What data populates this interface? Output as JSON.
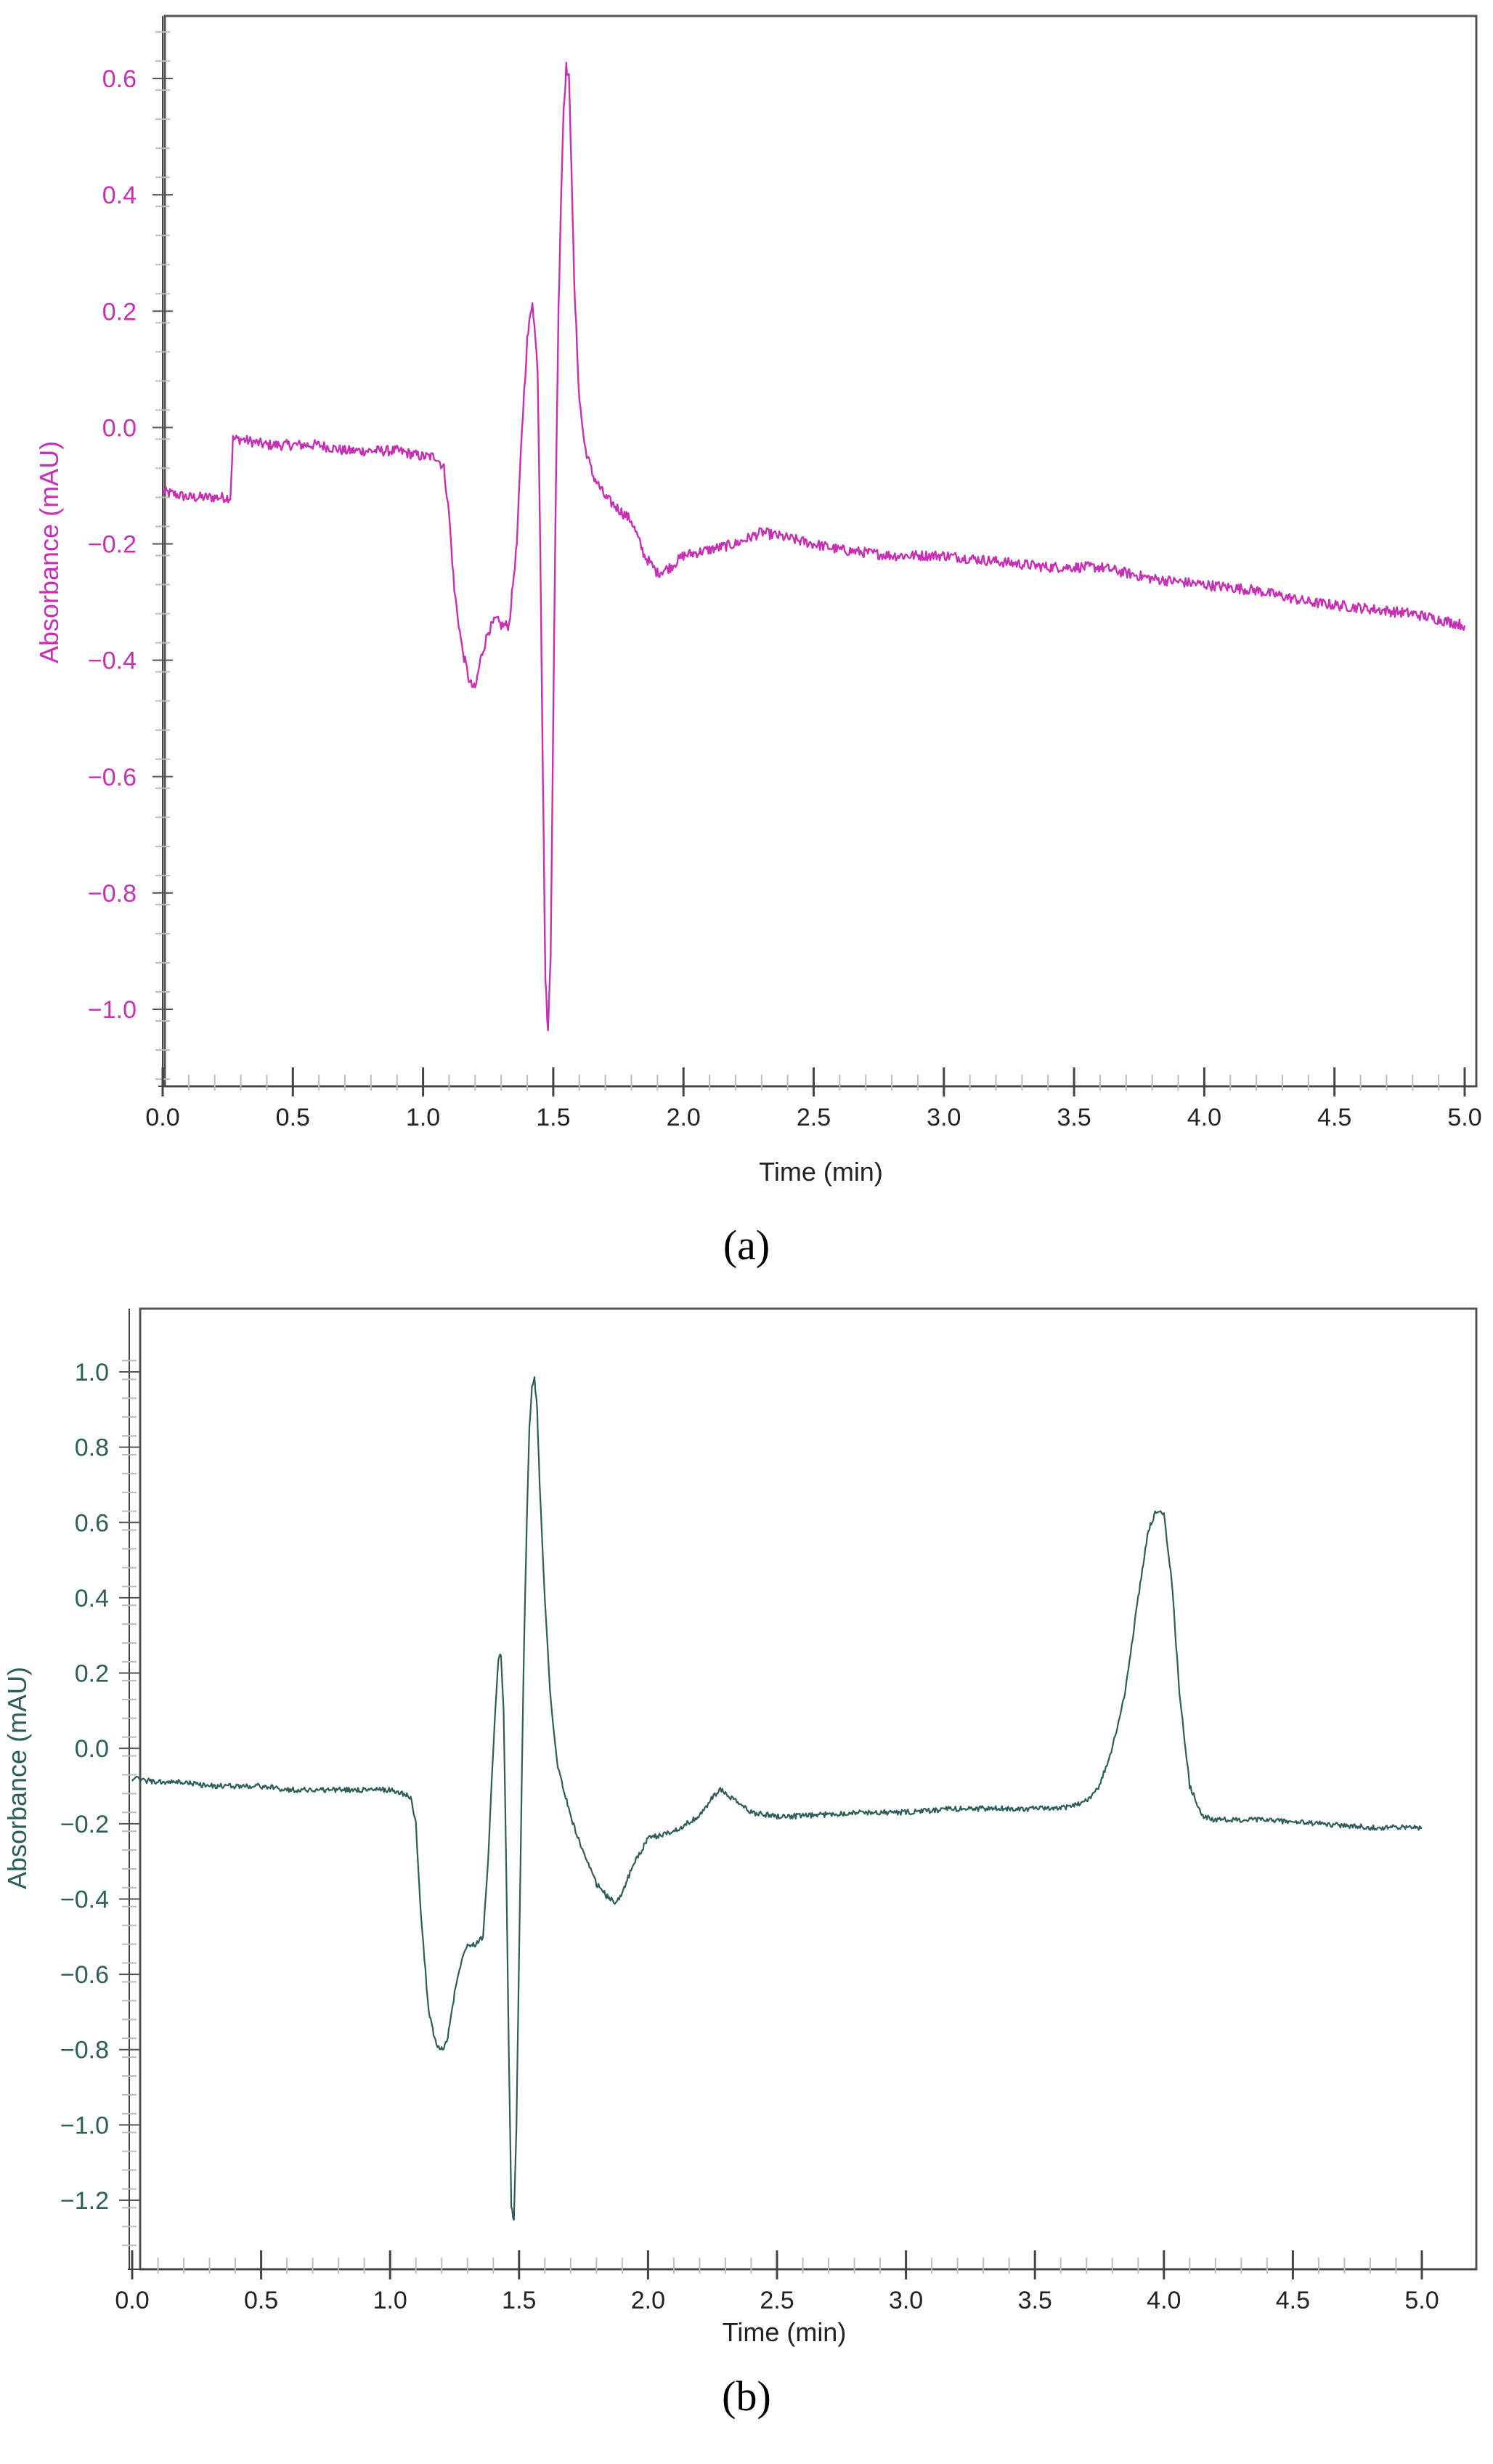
{
  "figure": {
    "captions": [
      "(a)",
      "(b)"
    ]
  },
  "colors": {
    "panel_a": "#c72fb5",
    "panel_b": "#2e5e5a",
    "axis": "#333333",
    "minor_tick": "#bdbdbd"
  },
  "chart_data": [
    {
      "panel": "a",
      "type": "line",
      "xlabel": "Time (min)",
      "ylabel": "Absorbance (mAU)",
      "xlim": [
        0.0,
        5.0
      ],
      "ylim": [
        -1.12,
        0.72
      ],
      "x_ticks": [
        "0.0",
        "0.5",
        "1.0",
        "1.5",
        "2.0",
        "2.5",
        "3.0",
        "3.5",
        "4.0",
        "4.5",
        "5.0"
      ],
      "y_ticks": [
        "0.6",
        "0.4",
        "0.2",
        "0.0",
        "−0.2",
        "−0.4",
        "−0.6",
        "−0.8",
        "−1.0"
      ],
      "y_tick_values": [
        0.6,
        0.4,
        0.2,
        0.0,
        -0.2,
        -0.4,
        -0.6,
        -0.8,
        -1.0
      ],
      "grid": false,
      "series": [
        {
          "x": [
            0.0,
            0.1,
            0.2,
            0.26,
            0.27,
            0.3,
            0.4,
            0.5,
            0.6,
            0.7,
            0.8,
            0.9,
            1.0,
            1.05,
            1.08,
            1.1,
            1.12,
            1.15,
            1.18,
            1.2,
            1.22,
            1.25,
            1.28,
            1.3,
            1.33,
            1.36,
            1.38,
            1.4,
            1.42,
            1.44,
            1.45,
            1.46,
            1.47,
            1.48,
            1.49,
            1.5,
            1.51,
            1.52,
            1.53,
            1.54,
            1.55,
            1.56,
            1.57,
            1.58,
            1.6,
            1.62,
            1.65,
            1.7,
            1.75,
            1.8,
            1.85,
            1.9,
            1.95,
            2.0,
            2.1,
            2.2,
            2.3,
            2.4,
            2.5,
            2.6,
            2.8,
            3.0,
            3.2,
            3.4,
            3.6,
            3.8,
            4.0,
            4.2,
            4.4,
            4.6,
            4.8,
            5.0
          ],
          "y": [
            -0.11,
            -0.12,
            -0.12,
            -0.12,
            -0.02,
            -0.02,
            -0.03,
            -0.03,
            -0.03,
            -0.04,
            -0.04,
            -0.04,
            -0.05,
            -0.05,
            -0.07,
            -0.15,
            -0.28,
            -0.38,
            -0.44,
            -0.45,
            -0.4,
            -0.35,
            -0.33,
            -0.34,
            -0.34,
            -0.2,
            0.0,
            0.15,
            0.22,
            0.1,
            -0.2,
            -0.6,
            -0.95,
            -1.04,
            -0.9,
            -0.5,
            -0.1,
            0.2,
            0.4,
            0.55,
            0.62,
            0.6,
            0.45,
            0.25,
            0.05,
            -0.03,
            -0.08,
            -0.12,
            -0.14,
            -0.16,
            -0.22,
            -0.25,
            -0.24,
            -0.22,
            -0.21,
            -0.2,
            -0.18,
            -0.19,
            -0.2,
            -0.21,
            -0.22,
            -0.22,
            -0.23,
            -0.24,
            -0.24,
            -0.26,
            -0.27,
            -0.28,
            -0.3,
            -0.31,
            -0.32,
            -0.34
          ]
        }
      ]
    },
    {
      "panel": "b",
      "type": "line",
      "xlabel": "Time (min)",
      "ylabel": "Absorbance (mAU)",
      "xlim": [
        0.0,
        5.0
      ],
      "ylim": [
        -1.32,
        1.07
      ],
      "x_ticks": [
        "0.0",
        "0.5",
        "1.0",
        "1.5",
        "2.0",
        "2.5",
        "3.0",
        "3.5",
        "4.0",
        "4.5",
        "5.0"
      ],
      "y_ticks": [
        "1.0",
        "0.8",
        "0.6",
        "0.4",
        "0.2",
        "0.0",
        "−0.2",
        "−0.4",
        "−0.6",
        "−0.8",
        "−1.0",
        "−1.2"
      ],
      "y_tick_values": [
        1.0,
        0.8,
        0.6,
        0.4,
        0.2,
        0.0,
        -0.2,
        -0.4,
        -0.6,
        -0.8,
        -1.0,
        -1.2
      ],
      "grid": false,
      "series": [
        {
          "x": [
            0.0,
            0.1,
            0.2,
            0.3,
            0.4,
            0.5,
            0.6,
            0.7,
            0.8,
            0.9,
            1.0,
            1.05,
            1.08,
            1.1,
            1.12,
            1.15,
            1.18,
            1.2,
            1.22,
            1.25,
            1.28,
            1.3,
            1.33,
            1.36,
            1.38,
            1.4,
            1.42,
            1.43,
            1.44,
            1.45,
            1.46,
            1.47,
            1.48,
            1.49,
            1.5,
            1.51,
            1.52,
            1.53,
            1.54,
            1.55,
            1.56,
            1.57,
            1.58,
            1.6,
            1.62,
            1.65,
            1.7,
            1.75,
            1.8,
            1.85,
            1.88,
            1.9,
            1.95,
            2.0,
            2.1,
            2.2,
            2.25,
            2.28,
            2.32,
            2.4,
            2.5,
            2.6,
            2.8,
            3.0,
            3.2,
            3.4,
            3.6,
            3.7,
            3.75,
            3.8,
            3.85,
            3.9,
            3.94,
            3.97,
            4.0,
            4.03,
            4.06,
            4.1,
            4.15,
            4.2,
            4.3,
            4.4,
            4.6,
            4.8,
            5.0
          ],
          "y": [
            -0.08,
            -0.09,
            -0.09,
            -0.1,
            -0.1,
            -0.1,
            -0.11,
            -0.11,
            -0.11,
            -0.11,
            -0.11,
            -0.12,
            -0.13,
            -0.2,
            -0.45,
            -0.7,
            -0.79,
            -0.8,
            -0.78,
            -0.65,
            -0.55,
            -0.52,
            -0.52,
            -0.5,
            -0.3,
            0.0,
            0.24,
            0.25,
            0.1,
            -0.3,
            -0.8,
            -1.22,
            -1.25,
            -1.0,
            -0.55,
            -0.1,
            0.3,
            0.6,
            0.85,
            0.96,
            0.98,
            0.9,
            0.7,
            0.4,
            0.15,
            -0.05,
            -0.18,
            -0.28,
            -0.36,
            -0.4,
            -0.41,
            -0.38,
            -0.3,
            -0.24,
            -0.22,
            -0.18,
            -0.13,
            -0.11,
            -0.13,
            -0.17,
            -0.18,
            -0.18,
            -0.17,
            -0.17,
            -0.16,
            -0.16,
            -0.16,
            -0.14,
            -0.1,
            0.0,
            0.15,
            0.4,
            0.58,
            0.63,
            0.62,
            0.45,
            0.15,
            -0.1,
            -0.18,
            -0.19,
            -0.19,
            -0.19,
            -0.2,
            -0.21,
            -0.21
          ]
        }
      ]
    }
  ]
}
